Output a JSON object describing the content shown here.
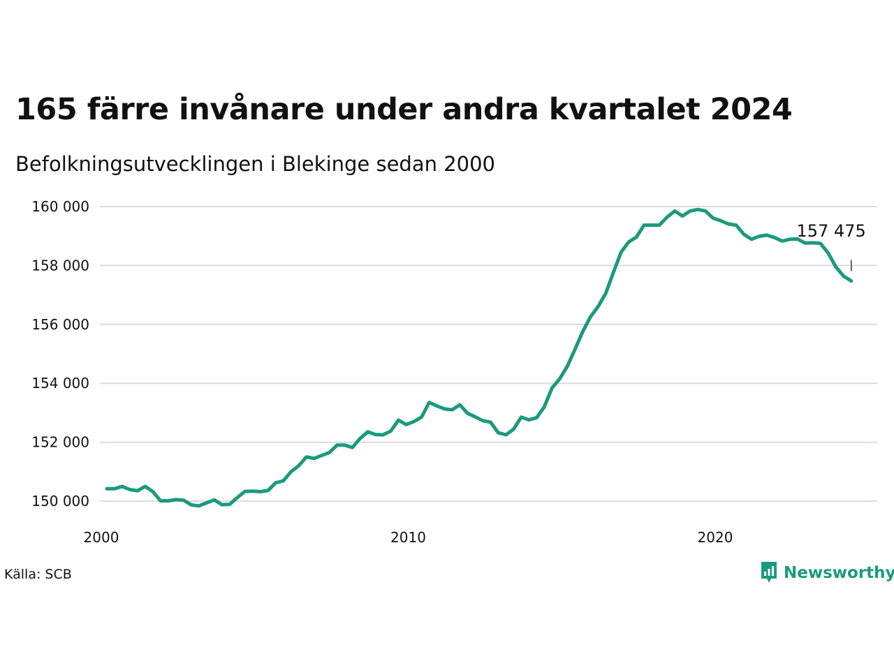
{
  "title": "165 färre invånare under andra kvartalet 2024",
  "subtitle": "Befolkningsutvecklingen i Blekinge sedan 2000",
  "source": "Källa: SCB",
  "brand": "Newsworthy",
  "colors": {
    "line": "#1b9a7d",
    "grid": "#d9dbe1",
    "text": "#111111"
  },
  "chart_data": {
    "type": "line",
    "title": "165 färre invånare under andra kvartalet 2024",
    "subtitle": "Befolkningsutvecklingen i Blekinge sedan 2000",
    "xlabel": "",
    "ylabel": "",
    "xlim": [
      "2000",
      "2024"
    ],
    "ylim": [
      149500,
      160100
    ],
    "y_ticks": [
      150000,
      152000,
      154000,
      156000,
      158000,
      160000
    ],
    "y_tick_labels": [
      "150 000",
      "152 000",
      "154 000",
      "156 000",
      "158 000",
      "160 000"
    ],
    "x_ticks": [
      "2000",
      "2010",
      "2020"
    ],
    "x_tick_labels": [
      "2000",
      "2010",
      "2020"
    ],
    "grid": "horizontal",
    "legend": "none",
    "end_label": "157 475",
    "series": [
      {
        "x": [
          "2000-Q1",
          "2000-Q2",
          "2000-Q3",
          "2000-Q4",
          "2001-Q1",
          "2001-Q2",
          "2001-Q3",
          "2001-Q4",
          "2002-Q1",
          "2002-Q2",
          "2002-Q3",
          "2002-Q4",
          "2003-Q1",
          "2003-Q2",
          "2003-Q3",
          "2003-Q4",
          "2004-Q1",
          "2004-Q2",
          "2004-Q3",
          "2004-Q4",
          "2005-Q1",
          "2005-Q2",
          "2005-Q3",
          "2005-Q4",
          "2006-Q1",
          "2006-Q2",
          "2006-Q3",
          "2006-Q4",
          "2007-Q1",
          "2007-Q2",
          "2007-Q3",
          "2007-Q4",
          "2008-Q1",
          "2008-Q2",
          "2008-Q3",
          "2008-Q4",
          "2009-Q1",
          "2009-Q2",
          "2009-Q3",
          "2009-Q4",
          "2010-Q1",
          "2010-Q2",
          "2010-Q3",
          "2010-Q4",
          "2011-Q1",
          "2011-Q2",
          "2011-Q3",
          "2011-Q4",
          "2012-Q1",
          "2012-Q2",
          "2012-Q3",
          "2012-Q4",
          "2013-Q1",
          "2013-Q2",
          "2013-Q3",
          "2013-Q4",
          "2014-Q1",
          "2014-Q2",
          "2014-Q3",
          "2014-Q4",
          "2015-Q1",
          "2015-Q2",
          "2015-Q3",
          "2015-Q4",
          "2016-Q1",
          "2016-Q2",
          "2016-Q3",
          "2016-Q4",
          "2017-Q1",
          "2017-Q2",
          "2017-Q3",
          "2017-Q4",
          "2018-Q1",
          "2018-Q2",
          "2018-Q3",
          "2018-Q4",
          "2019-Q1",
          "2019-Q2",
          "2019-Q3",
          "2019-Q4",
          "2020-Q1",
          "2020-Q2",
          "2020-Q3",
          "2020-Q4",
          "2021-Q1",
          "2021-Q2",
          "2021-Q3",
          "2021-Q4",
          "2022-Q1",
          "2022-Q2",
          "2022-Q3",
          "2022-Q4",
          "2023-Q1",
          "2023-Q2",
          "2023-Q3",
          "2023-Q4",
          "2024-Q1",
          "2024-Q2"
        ],
        "values": [
          150420,
          150420,
          150500,
          150390,
          150350,
          150500,
          150320,
          150010,
          150010,
          150050,
          150030,
          149870,
          149840,
          149940,
          150040,
          149880,
          149890,
          150120,
          150330,
          150340,
          150320,
          150360,
          150620,
          150690,
          151000,
          151200,
          151500,
          151450,
          151550,
          151650,
          151900,
          151900,
          151820,
          152130,
          152350,
          152260,
          152250,
          152380,
          152750,
          152600,
          152700,
          152850,
          153350,
          153230,
          153130,
          153100,
          153270,
          152980,
          152860,
          152730,
          152680,
          152320,
          152250,
          152440,
          152850,
          152760,
          152830,
          153200,
          153840,
          154150,
          154580,
          155150,
          155750,
          156250,
          156600,
          157050,
          157760,
          158450,
          158800,
          158960,
          159370,
          159370,
          159370,
          159640,
          159850,
          159680,
          159850,
          159900,
          159850,
          159610,
          159520,
          159410,
          159370,
          159060,
          158890,
          158990,
          159030,
          158950,
          158830,
          158890,
          158900,
          158760,
          158770,
          158750,
          158420,
          157950,
          157640,
          157475
        ]
      }
    ]
  }
}
